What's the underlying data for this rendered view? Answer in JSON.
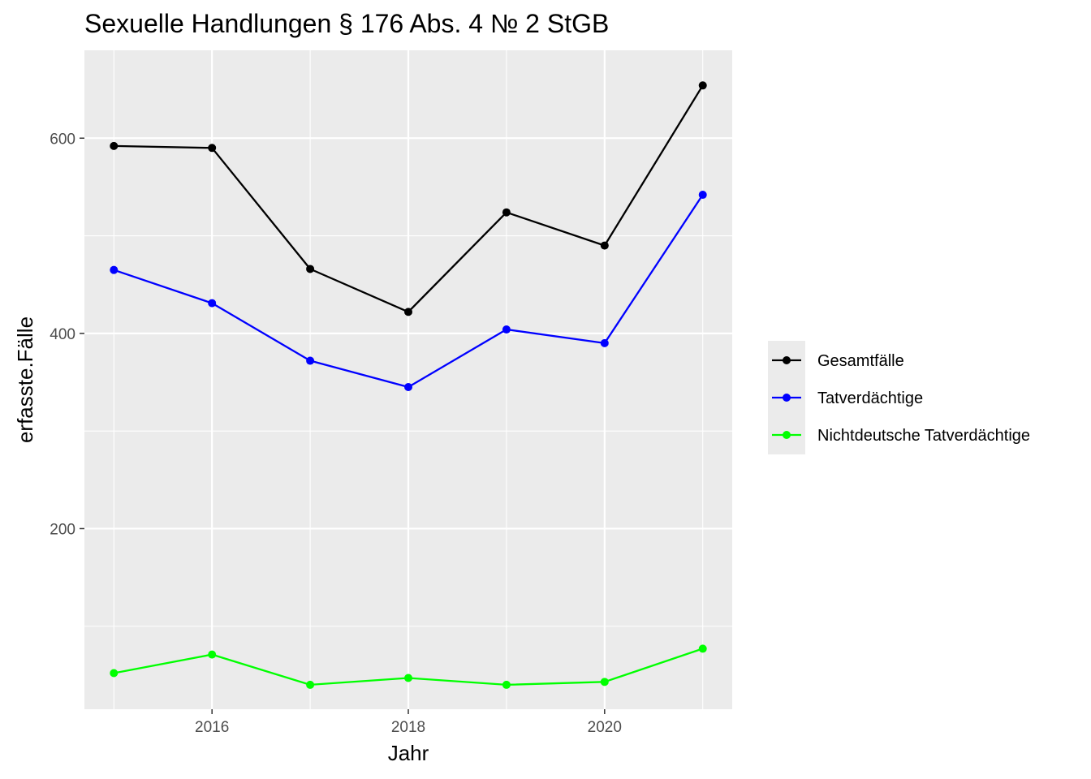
{
  "chart_data": {
    "type": "line",
    "title": "Sexuelle Handlungen § 176 Abs. 4 № 2 StGB",
    "xlabel": "Jahr",
    "ylabel": "erfasste.Fälle",
    "x": [
      2015,
      2016,
      2017,
      2018,
      2019,
      2020,
      2021
    ],
    "xlim": [
      2014.7,
      2021.3
    ],
    "ylim": [
      15,
      690
    ],
    "x_ticks": [
      2016,
      2018,
      2020
    ],
    "y_ticks": [
      200,
      400,
      600
    ],
    "grid": true,
    "legend_position": "right",
    "series": [
      {
        "name": "Gesamtfälle",
        "color": "#000000",
        "values": [
          592,
          590,
          466,
          422,
          524,
          490,
          654
        ]
      },
      {
        "name": "Tatverdächtige",
        "color": "#0000ff",
        "values": [
          465,
          431,
          372,
          345,
          404,
          390,
          542
        ]
      },
      {
        "name": "Nichtdeutsche Tatverdächtige",
        "color": "#00ff00",
        "values": [
          52,
          71,
          40,
          47,
          40,
          43,
          77
        ]
      }
    ]
  }
}
